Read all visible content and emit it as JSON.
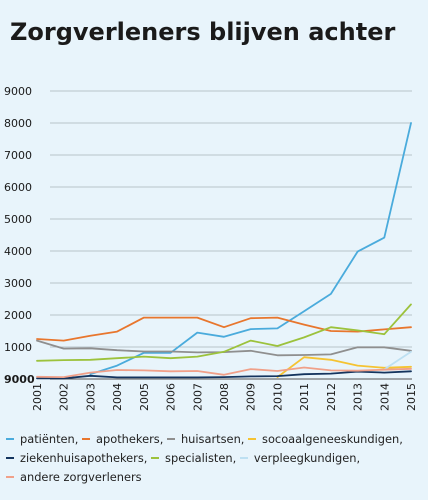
{
  "chart_data": {
    "type": "line",
    "title": "Zorgverleners blijven achter",
    "xlabel": "",
    "ylabel": "",
    "x": [
      2001,
      2002,
      2003,
      2004,
      2005,
      2006,
      2007,
      2008,
      2009,
      2010,
      2011,
      2012,
      2013,
      2014,
      2015
    ],
    "x_labels": [
      "2001",
      "2002",
      "2003",
      "2004",
      "2005",
      "2006",
      "2007",
      "2008",
      "2009",
      "2010",
      "2011",
      "2012",
      "2013",
      "2014",
      "2015"
    ],
    "ylim": [
      0,
      9000
    ],
    "y_ticks": [
      1000,
      2000,
      3000,
      4000,
      5000,
      6000,
      7000,
      8000,
      9000
    ],
    "y_tick_labels": [
      "1000",
      "2000",
      "3000",
      "4000",
      "5000",
      "6000",
      "7000",
      "8000",
      "9000"
    ],
    "y_base_label": "9000",
    "grid": true,
    "legend_position": "bottom",
    "series": [
      {
        "name": "patiënten",
        "color": "#4aabdc",
        "values": [
          null,
          null,
          150,
          420,
          820,
          820,
          1450,
          1320,
          1560,
          1580,
          2120,
          2660,
          3980,
          4420,
          8000
        ]
      },
      {
        "name": "apothekers",
        "color": "#e8762d",
        "values": [
          1250,
          1200,
          1350,
          1480,
          1920,
          1920,
          1920,
          1620,
          1900,
          1920,
          1700,
          1500,
          1480,
          1550,
          1620
        ]
      },
      {
        "name": "huisartsen",
        "color": "#8f8f8f",
        "values": [
          1200,
          950,
          960,
          900,
          860,
          860,
          830,
          840,
          880,
          740,
          750,
          770,
          990,
          990,
          880
        ]
      },
      {
        "name": "socoaalgeneeskundigen",
        "color": "#f5c332",
        "values": [
          null,
          null,
          null,
          null,
          null,
          null,
          null,
          null,
          null,
          60,
          680,
          600,
          420,
          350,
          380
        ]
      },
      {
        "name": "ziekenhuisapothekers",
        "color": "#14345e",
        "values": [
          20,
          20,
          100,
          50,
          50,
          50,
          50,
          60,
          80,
          90,
          150,
          170,
          230,
          200,
          240
        ]
      },
      {
        "name": "specialisten",
        "color": "#9cc23c",
        "values": [
          570,
          590,
          600,
          650,
          700,
          650,
          700,
          850,
          1200,
          1030,
          1300,
          1620,
          1520,
          1400,
          2330
        ]
      },
      {
        "name": "verpleegkundigen",
        "color": "#bde0f2",
        "values": [
          null,
          null,
          null,
          null,
          null,
          null,
          null,
          null,
          null,
          null,
          null,
          null,
          null,
          300,
          850
        ]
      },
      {
        "name": "andere zorgverleners",
        "color": "#f0a089",
        "values": [
          70,
          60,
          200,
          280,
          270,
          240,
          250,
          130,
          310,
          250,
          360,
          270,
          260,
          290,
          320
        ]
      }
    ]
  },
  "legend": {
    "separator": ","
  }
}
